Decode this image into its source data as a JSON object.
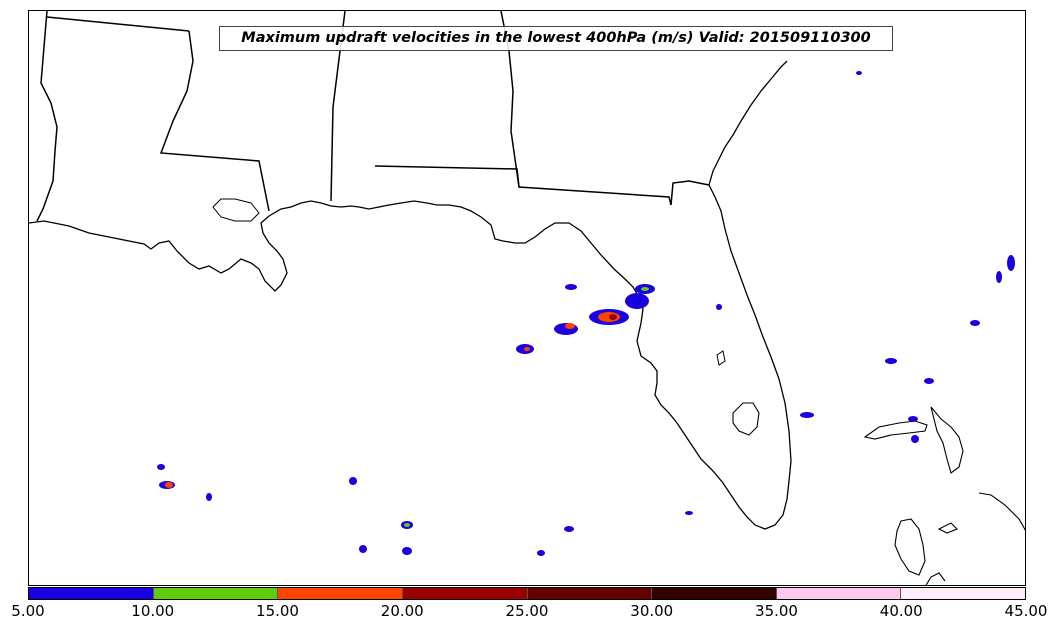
{
  "title": "Maximum updraft velocities in the lowest 400hPa (m/s) Valid: 201509110300",
  "colorbar": {
    "ticks": [
      "5.00",
      "10.00",
      "15.00",
      "20.00",
      "25.00",
      "30.00",
      "35.00",
      "40.00",
      "45.00"
    ],
    "colors": [
      "#1a00e0",
      "#5fcc10",
      "#ff4400",
      "#990000",
      "#660000",
      "#330000",
      "#ffc8f0",
      "#ffeefa"
    ]
  },
  "palette": {
    "coastline": "#000000",
    "low": "#1a00e0",
    "mid": "#5fcc10",
    "high": "#ff4400",
    "very_high": "#990000"
  }
}
